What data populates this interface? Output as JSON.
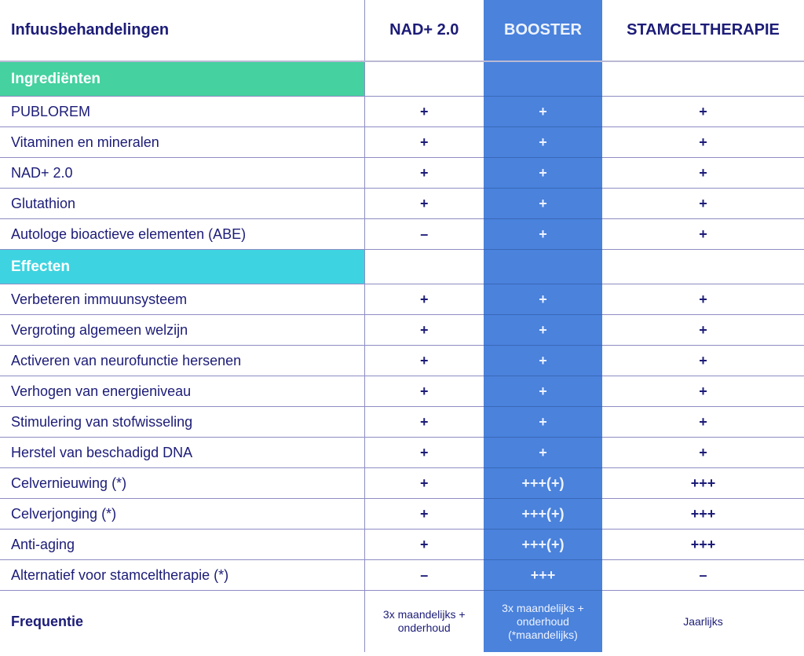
{
  "header": {
    "title": "Infuusbehandelingen",
    "columns": [
      "NAD+ 2.0",
      "BOOSTER",
      "STAMCELTHERAPIE"
    ]
  },
  "colors": {
    "booster": "#4a82dc",
    "ingredients_section": "#45d1a0",
    "effects_section": "#3ed3e0",
    "text": "#1c1c78"
  },
  "sections": [
    {
      "title": "Ingrediënten",
      "rows": [
        {
          "label": "PUBLOREM",
          "values": [
            "+",
            "+",
            "+"
          ]
        },
        {
          "label": "Vitaminen en mineralen",
          "values": [
            "+",
            "+",
            "+"
          ]
        },
        {
          "label": "NAD+ 2.0",
          "values": [
            "+",
            "+",
            "+"
          ]
        },
        {
          "label": "Glutathion",
          "values": [
            "+",
            "+",
            "+"
          ]
        },
        {
          "label": "Autologe bioactieve elementen (ABE)",
          "values": [
            "–",
            "+",
            "+"
          ]
        }
      ]
    },
    {
      "title": "Effecten",
      "rows": [
        {
          "label": "Verbeteren immuunsysteem",
          "values": [
            "+",
            "+",
            "+"
          ]
        },
        {
          "label": "Vergroting algemeen welzijn",
          "values": [
            "+",
            "+",
            "+"
          ]
        },
        {
          "label": "Activeren van neurofunctie hersenen",
          "values": [
            "+",
            "+",
            "+"
          ]
        },
        {
          "label": "Verhogen van energieniveau",
          "values": [
            "+",
            "+",
            "+"
          ]
        },
        {
          "label": "Stimulering van stofwisseling",
          "values": [
            "+",
            "+",
            "+"
          ]
        },
        {
          "label": "Herstel van beschadigd DNA",
          "values": [
            "+",
            "+",
            "+"
          ]
        },
        {
          "label": "Celvernieuwing (*)",
          "values": [
            "+",
            "+++(+)",
            "+++"
          ]
        },
        {
          "label": "Celverjonging (*)",
          "values": [
            "+",
            "+++(+)",
            "+++"
          ]
        },
        {
          "label": "Anti-aging",
          "values": [
            "+",
            "+++(+)",
            "+++"
          ]
        },
        {
          "label": "Alternatief voor stamceltherapie (*)",
          "values": [
            "–",
            "+++",
            "–"
          ]
        }
      ]
    }
  ],
  "frequency": {
    "label": "Frequentie",
    "values": [
      "3x maandelijks + onderhoud",
      "3x maandelijks + onderhoud (*maandelijks)",
      "Jaarlijks"
    ]
  }
}
